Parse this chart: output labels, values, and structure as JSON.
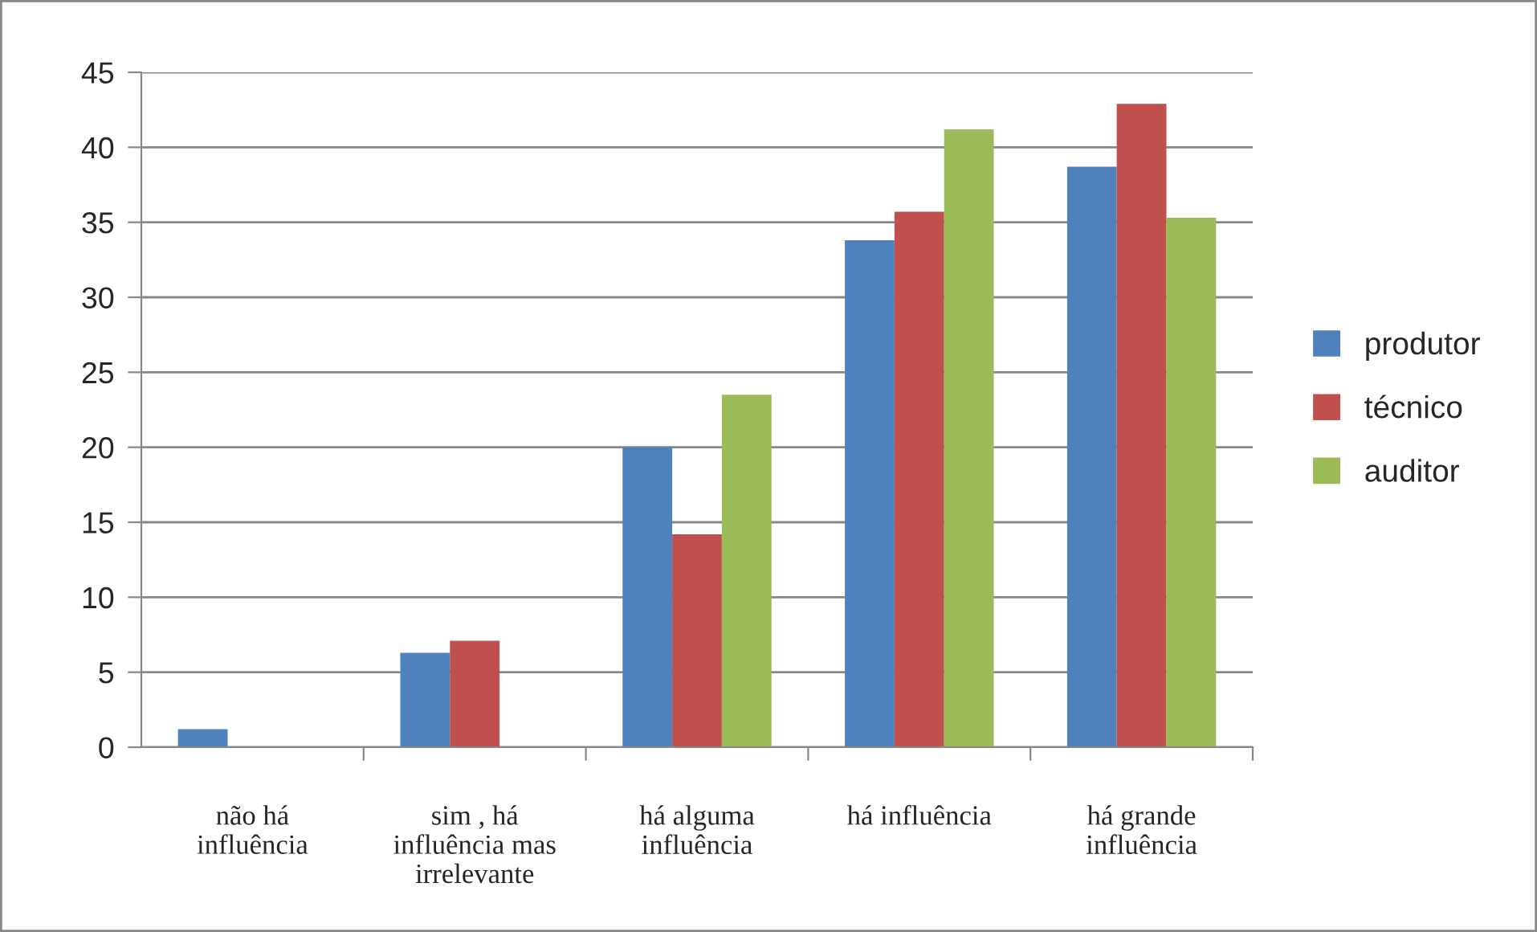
{
  "chart_data": {
    "type": "bar",
    "categories": [
      "não há\ninfluência",
      "sim , há\ninfluência mas\nirrelevante",
      "há alguma\ninfluência",
      "há influência",
      "há grande\ninfluência"
    ],
    "series": [
      {
        "name": "produtor",
        "color": "#4f81bd",
        "values": [
          1.2,
          6.3,
          20,
          33.8,
          38.7
        ]
      },
      {
        "name": "técnico",
        "color": "#c0504d",
        "values": [
          0,
          7.1,
          14.2,
          35.7,
          42.9
        ]
      },
      {
        "name": "auditor",
        "color": "#9bbb59",
        "values": [
          0,
          0,
          23.5,
          41.2,
          35.3
        ]
      }
    ],
    "ylim": [
      0,
      45
    ],
    "yticks": [
      0,
      5,
      10,
      15,
      20,
      25,
      30,
      35,
      40,
      45
    ],
    "grid": "y",
    "legend": "right"
  }
}
